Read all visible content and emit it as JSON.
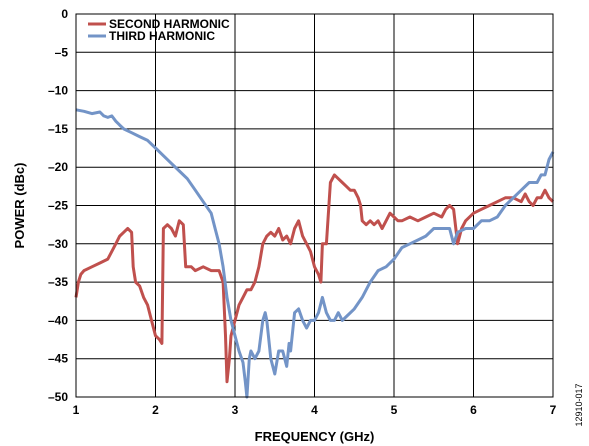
{
  "chart_data": {
    "type": "line",
    "xlabel": "FREQUENCY (GHz)",
    "ylabel": "POWER (dBc)",
    "xlim": [
      1,
      7
    ],
    "ylim": [
      -50,
      0
    ],
    "xticks": [
      1,
      2,
      3,
      4,
      5,
      6,
      7
    ],
    "yticks": [
      0,
      -5,
      -10,
      -15,
      -20,
      -25,
      -30,
      -35,
      -40,
      -45,
      -50
    ],
    "xtick_labels": [
      "1",
      "2",
      "3",
      "4",
      "5",
      "6",
      "7"
    ],
    "ytick_labels": [
      "0",
      "–5",
      "–10",
      "–15",
      "–20",
      "–25",
      "–30",
      "–35",
      "–40",
      "–45",
      "–50"
    ],
    "grid": true,
    "legend_position": "top-left",
    "figure_id": "12910-017",
    "series": [
      {
        "name": "SECOND HARMONIC",
        "color": "#c0504d",
        "points": [
          [
            1.0,
            -37
          ],
          [
            1.03,
            -35
          ],
          [
            1.06,
            -34
          ],
          [
            1.1,
            -33.5
          ],
          [
            1.2,
            -33
          ],
          [
            1.3,
            -32.5
          ],
          [
            1.4,
            -32
          ],
          [
            1.5,
            -30
          ],
          [
            1.55,
            -29
          ],
          [
            1.6,
            -28.5
          ],
          [
            1.65,
            -28
          ],
          [
            1.7,
            -28.5
          ],
          [
            1.72,
            -33
          ],
          [
            1.75,
            -35
          ],
          [
            1.8,
            -35.5
          ],
          [
            1.85,
            -37
          ],
          [
            1.9,
            -38
          ],
          [
            1.95,
            -40
          ],
          [
            2.0,
            -42
          ],
          [
            2.05,
            -42.5
          ],
          [
            2.08,
            -43
          ],
          [
            2.1,
            -28
          ],
          [
            2.15,
            -27.5
          ],
          [
            2.2,
            -28
          ],
          [
            2.25,
            -29
          ],
          [
            2.3,
            -27
          ],
          [
            2.35,
            -27.5
          ],
          [
            2.38,
            -33
          ],
          [
            2.45,
            -33
          ],
          [
            2.5,
            -33.5
          ],
          [
            2.6,
            -33
          ],
          [
            2.7,
            -33.5
          ],
          [
            2.8,
            -33.5
          ],
          [
            2.85,
            -35
          ],
          [
            2.88,
            -42
          ],
          [
            2.9,
            -48
          ],
          [
            2.93,
            -45
          ],
          [
            2.95,
            -42
          ],
          [
            3.0,
            -40
          ],
          [
            3.05,
            -38
          ],
          [
            3.1,
            -37
          ],
          [
            3.15,
            -36
          ],
          [
            3.2,
            -36
          ],
          [
            3.25,
            -35
          ],
          [
            3.3,
            -33
          ],
          [
            3.35,
            -30
          ],
          [
            3.4,
            -29
          ],
          [
            3.45,
            -28.5
          ],
          [
            3.5,
            -29
          ],
          [
            3.55,
            -28
          ],
          [
            3.6,
            -29.5
          ],
          [
            3.65,
            -29
          ],
          [
            3.7,
            -30
          ],
          [
            3.75,
            -28
          ],
          [
            3.8,
            -27
          ],
          [
            3.85,
            -29
          ],
          [
            3.9,
            -30
          ],
          [
            3.95,
            -31
          ],
          [
            4.0,
            -33
          ],
          [
            4.05,
            -34
          ],
          [
            4.08,
            -35
          ],
          [
            4.1,
            -30
          ],
          [
            4.15,
            -30
          ],
          [
            4.2,
            -22
          ],
          [
            4.25,
            -21
          ],
          [
            4.3,
            -21.5
          ],
          [
            4.35,
            -22
          ],
          [
            4.4,
            -22.5
          ],
          [
            4.45,
            -23
          ],
          [
            4.5,
            -23
          ],
          [
            4.55,
            -24
          ],
          [
            4.58,
            -25
          ],
          [
            4.6,
            -27
          ],
          [
            4.65,
            -27.5
          ],
          [
            4.7,
            -27
          ],
          [
            4.75,
            -27.5
          ],
          [
            4.8,
            -27
          ],
          [
            4.85,
            -28
          ],
          [
            4.9,
            -27
          ],
          [
            4.95,
            -26
          ],
          [
            5.0,
            -26.5
          ],
          [
            5.05,
            -27
          ],
          [
            5.1,
            -27
          ],
          [
            5.2,
            -26.5
          ],
          [
            5.3,
            -27
          ],
          [
            5.4,
            -26.5
          ],
          [
            5.5,
            -26
          ],
          [
            5.6,
            -26.5
          ],
          [
            5.65,
            -25.5
          ],
          [
            5.7,
            -25
          ],
          [
            5.75,
            -25.5
          ],
          [
            5.8,
            -30
          ],
          [
            5.85,
            -28
          ],
          [
            5.9,
            -27
          ],
          [
            6.0,
            -26
          ],
          [
            6.1,
            -25.5
          ],
          [
            6.2,
            -25
          ],
          [
            6.3,
            -24.5
          ],
          [
            6.4,
            -24
          ],
          [
            6.5,
            -24
          ],
          [
            6.6,
            -24.5
          ],
          [
            6.65,
            -23.5
          ],
          [
            6.7,
            -24.5
          ],
          [
            6.75,
            -25
          ],
          [
            6.8,
            -24
          ],
          [
            6.85,
            -24
          ],
          [
            6.9,
            -23
          ],
          [
            6.95,
            -24
          ],
          [
            7.0,
            -24.5
          ]
        ]
      },
      {
        "name": "THIRD HARMONIC",
        "color": "#7394c7",
        "points": [
          [
            1.0,
            -12.5
          ],
          [
            1.1,
            -12.7
          ],
          [
            1.2,
            -13
          ],
          [
            1.3,
            -12.8
          ],
          [
            1.35,
            -13.3
          ],
          [
            1.4,
            -13.5
          ],
          [
            1.45,
            -13.3
          ],
          [
            1.5,
            -14
          ],
          [
            1.55,
            -14.5
          ],
          [
            1.6,
            -15
          ],
          [
            1.7,
            -15.5
          ],
          [
            1.8,
            -16
          ],
          [
            1.9,
            -16.5
          ],
          [
            2.0,
            -17.5
          ],
          [
            2.1,
            -18.5
          ],
          [
            2.2,
            -19.5
          ],
          [
            2.3,
            -20.5
          ],
          [
            2.4,
            -21.5
          ],
          [
            2.5,
            -23
          ],
          [
            2.6,
            -24.5
          ],
          [
            2.7,
            -26
          ],
          [
            2.75,
            -28
          ],
          [
            2.8,
            -30
          ],
          [
            2.85,
            -33
          ],
          [
            2.9,
            -37
          ],
          [
            2.95,
            -40
          ],
          [
            3.0,
            -42
          ],
          [
            3.05,
            -44
          ],
          [
            3.1,
            -45.5
          ],
          [
            3.13,
            -48
          ],
          [
            3.15,
            -50
          ],
          [
            3.18,
            -45
          ],
          [
            3.2,
            -44
          ],
          [
            3.25,
            -45
          ],
          [
            3.3,
            -44
          ],
          [
            3.35,
            -40
          ],
          [
            3.38,
            -39
          ],
          [
            3.4,
            -40
          ],
          [
            3.45,
            -45
          ],
          [
            3.5,
            -47
          ],
          [
            3.55,
            -44
          ],
          [
            3.6,
            -44
          ],
          [
            3.65,
            -46
          ],
          [
            3.68,
            -43
          ],
          [
            3.7,
            -44
          ],
          [
            3.75,
            -39
          ],
          [
            3.8,
            -38.5
          ],
          [
            3.85,
            -40
          ],
          [
            3.9,
            -41
          ],
          [
            3.95,
            -40
          ],
          [
            4.0,
            -40
          ],
          [
            4.05,
            -39
          ],
          [
            4.1,
            -37
          ],
          [
            4.15,
            -39
          ],
          [
            4.2,
            -40
          ],
          [
            4.25,
            -40
          ],
          [
            4.3,
            -39
          ],
          [
            4.35,
            -40
          ],
          [
            4.4,
            -39.5
          ],
          [
            4.5,
            -38.5
          ],
          [
            4.6,
            -37
          ],
          [
            4.7,
            -35
          ],
          [
            4.8,
            -33.5
          ],
          [
            4.9,
            -33
          ],
          [
            5.0,
            -32
          ],
          [
            5.1,
            -30.5
          ],
          [
            5.2,
            -30
          ],
          [
            5.3,
            -29.5
          ],
          [
            5.4,
            -29
          ],
          [
            5.5,
            -28
          ],
          [
            5.6,
            -28
          ],
          [
            5.7,
            -28
          ],
          [
            5.75,
            -30
          ],
          [
            5.8,
            -28.5
          ],
          [
            5.9,
            -28
          ],
          [
            6.0,
            -28
          ],
          [
            6.1,
            -27
          ],
          [
            6.2,
            -27
          ],
          [
            6.3,
            -26.5
          ],
          [
            6.4,
            -25
          ],
          [
            6.5,
            -24
          ],
          [
            6.6,
            -23
          ],
          [
            6.7,
            -22
          ],
          [
            6.8,
            -22
          ],
          [
            6.85,
            -21
          ],
          [
            6.9,
            -21
          ],
          [
            6.95,
            -19
          ],
          [
            7.0,
            -18
          ]
        ]
      }
    ]
  }
}
